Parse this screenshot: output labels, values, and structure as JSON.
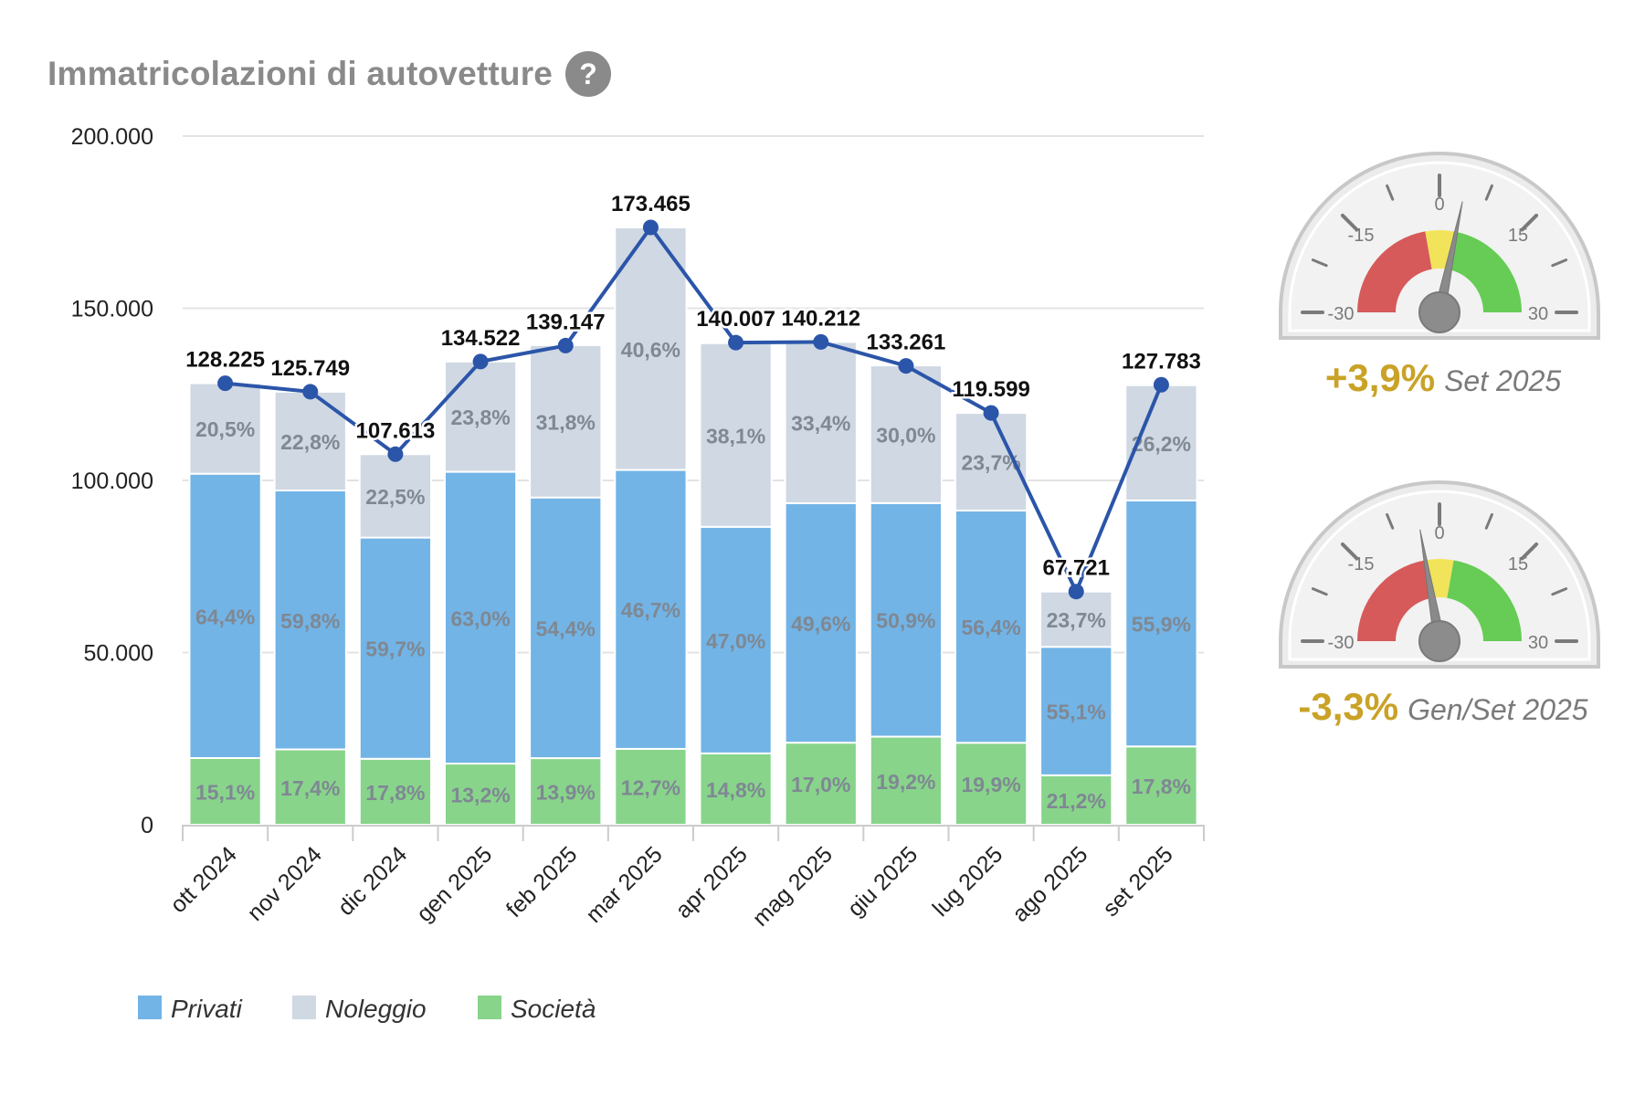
{
  "title": "Immatricolazioni di autovetture",
  "help_symbol": "?",
  "colors": {
    "privati": "#72b4e6",
    "noleggio": "#cfd8e3",
    "societa": "#88d48b",
    "line": "#2b55a9",
    "grid": "#e3e3e3",
    "seg_label": "#7f8893",
    "total_label": "#111111",
    "gauge_red": "#d65a5a",
    "gauge_yellow": "#f2e45a",
    "gauge_green": "#66cc55",
    "gauge_value": "#c9a227"
  },
  "chart_data": {
    "type": "bar",
    "stacked": true,
    "title": "Immatricolazioni di autovetture",
    "categories": [
      "ott 2024",
      "nov 2024",
      "dic 2024",
      "gen 2025",
      "feb 2025",
      "mar 2025",
      "apr 2025",
      "mag 2025",
      "giu 2025",
      "lug 2025",
      "ago 2025",
      "set 2025"
    ],
    "totals": [
      128225,
      125749,
      107613,
      134522,
      139147,
      173465,
      140007,
      140212,
      133261,
      119599,
      67721,
      127783
    ],
    "total_labels": [
      "128.225",
      "125.749",
      "107.613",
      "134.522",
      "139.147",
      "173.465",
      "140.007",
      "140.212",
      "133.261",
      "119.599",
      "67.721",
      "127.783"
    ],
    "series": [
      {
        "name": "Società",
        "color": "#88d48b",
        "percent": [
          15.1,
          17.4,
          17.8,
          13.2,
          13.9,
          12.7,
          14.8,
          17.0,
          19.2,
          19.9,
          21.2,
          17.8
        ],
        "labels": [
          "15,1%",
          "17,4%",
          "17,8%",
          "13,2%",
          "13,9%",
          "12,7%",
          "14,8%",
          "17,0%",
          "19,2%",
          "19,9%",
          "21,2%",
          "17,8%"
        ]
      },
      {
        "name": "Privati",
        "color": "#72b4e6",
        "percent": [
          64.4,
          59.8,
          59.7,
          63.0,
          54.4,
          46.7,
          47.0,
          49.6,
          50.9,
          56.4,
          55.1,
          55.9
        ],
        "labels": [
          "64,4%",
          "59,8%",
          "59,7%",
          "63,0%",
          "54,4%",
          "46,7%",
          "47,0%",
          "49,6%",
          "50,9%",
          "56,4%",
          "55,1%",
          "55,9%"
        ]
      },
      {
        "name": "Noleggio",
        "color": "#cfd8e3",
        "percent": [
          20.5,
          22.8,
          22.5,
          23.8,
          31.8,
          40.6,
          38.1,
          33.4,
          30.0,
          23.7,
          23.7,
          26.2
        ],
        "labels": [
          "20,5%",
          "22,8%",
          "22,5%",
          "23,8%",
          "31,8%",
          "40,6%",
          "38,1%",
          "33,4%",
          "30,0%",
          "23,7%",
          "23,7%",
          "26,2%"
        ]
      }
    ],
    "ylim": [
      0,
      200000
    ],
    "yticks": [
      0,
      50000,
      100000,
      150000,
      200000
    ],
    "ytick_labels": [
      "0",
      "50.000",
      "100.000",
      "150.000",
      "200.000"
    ],
    "legend": [
      "Privati",
      "Noleggio",
      "Società"
    ],
    "legend_position": "bottom-left",
    "grid": true
  },
  "gauges": [
    {
      "ticks": [
        "-30",
        "-15",
        "0",
        "15",
        "30"
      ],
      "value": 3.9,
      "value_label": "+3,9%",
      "period": "Set 2025"
    },
    {
      "ticks": [
        "-30",
        "-15",
        "0",
        "15",
        "30"
      ],
      "value": -3.3,
      "value_label": "-3,3%",
      "period": "Gen/Set 2025"
    }
  ]
}
